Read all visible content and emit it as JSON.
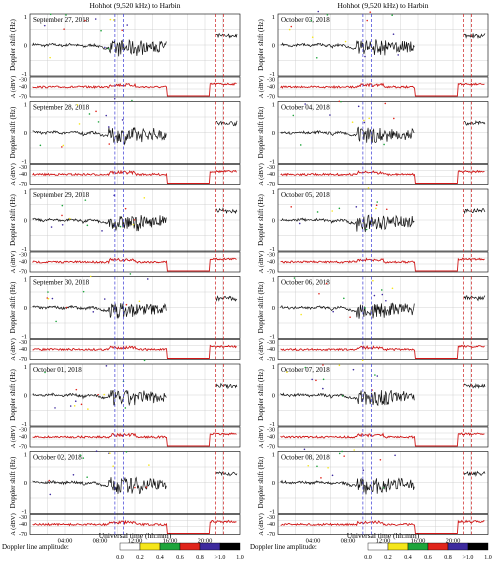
{
  "figure": {
    "left_title": "Hohhot (9,520 kHz) to Harbin",
    "right_title": "Hohhot (9,520 kHz) to Harbin",
    "left_xlabel": "Universal time (hh:mm)",
    "right_xlabel": "Universal time (hh:mm)",
    "colorbar_label": "Doppler line amplitude:",
    "colorbar_ticks": [
      "0.0",
      "0.2",
      "0.4",
      "0.6",
      "0.8",
      ">1.0",
      "1.0"
    ],
    "colorbar_colors": [
      "#ffffff",
      "#f5e61a",
      "#1ea53c",
      "#e0241b",
      "#3d2a9e",
      "#000000"
    ],
    "line_colors": {
      "doppler": "#111111",
      "amplitude": "#d01818",
      "marker_blue": "#3b3bd6",
      "marker_red": "#cc2020",
      "grid": "#c8c8c8"
    }
  },
  "chart_data": [
    {
      "type": "line",
      "dates": [
        "September 27, 2018",
        "September 28, 2018",
        "September 29, 2018",
        "September 30, 2018",
        "October 01, 2018",
        "October 02, 2018"
      ],
      "xlabel": "Universal time (hh:mm)",
      "x_ticks": [
        "04:00",
        "08:00",
        "12:00",
        "16:00",
        "20:00"
      ],
      "xlim": [
        "00:00",
        "24:00"
      ],
      "doppler_ylabel": "Doppler shift (Hz)",
      "doppler_yticks": [
        "1",
        "0",
        "-1"
      ],
      "doppler_ylim": [
        -1,
        1
      ],
      "amplitude_ylabel": "A (dBV)",
      "amplitude_yticks": [
        "-30",
        "-40",
        "-70"
      ],
      "amplitude_ylim": [
        -70,
        -30
      ],
      "blue_dashed_markers_h": [
        9.7,
        10.7
      ],
      "red_dashed_markers_h": [
        21.2,
        22.1
      ],
      "grid": true
    },
    {
      "type": "line",
      "dates": [
        "October 03, 2018",
        "October 04, 2018",
        "October 05, 2018",
        "October 06, 2018",
        "October 07, 2018",
        "October 08, 2018"
      ],
      "xlabel": "Universal time (hh:mm)",
      "x_ticks": [
        "04:00",
        "08:00",
        "12:00",
        "16:00",
        "20:00"
      ],
      "xlim": [
        "00:00",
        "24:00"
      ],
      "doppler_ylabel": "Doppler shift (Hz)",
      "doppler_yticks": [
        "1",
        "0",
        "-1"
      ],
      "doppler_ylim": [
        -1,
        1
      ],
      "amplitude_ylabel": "A (dBV)",
      "amplitude_yticks": [
        "-30",
        "-40",
        "-70"
      ],
      "amplitude_ylim": [
        -70,
        -30
      ],
      "blue_dashed_markers_h": [
        9.7,
        10.7
      ],
      "red_dashed_markers_h": [
        21.2,
        22.1
      ],
      "grid": true
    }
  ]
}
